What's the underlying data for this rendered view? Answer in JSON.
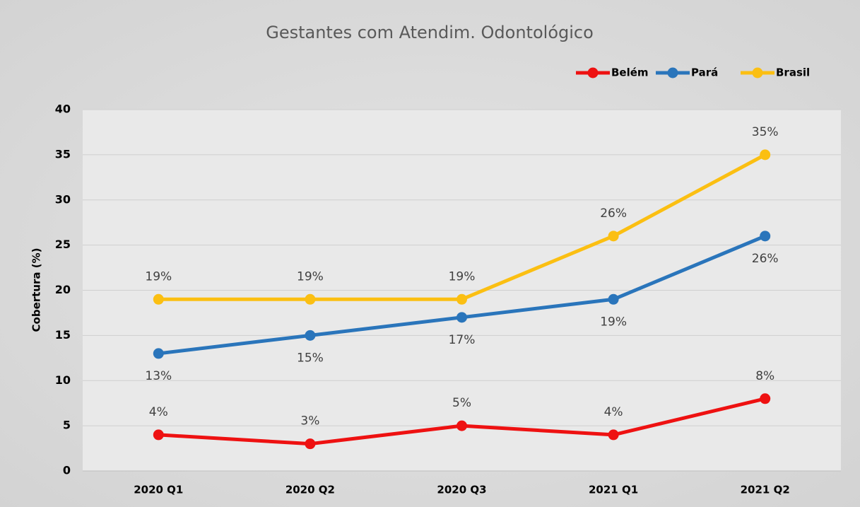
{
  "chart_data": {
    "type": "line",
    "title": "Gestantes com Atendim. Odontológico",
    "y_label": "Cobertura (%)",
    "categories": [
      "2020 Q1",
      "2020 Q2",
      "2020 Q3",
      "2021 Q1",
      "2021 Q2"
    ],
    "series": [
      {
        "name": "Belém",
        "color": "#ee1111",
        "values": [
          4,
          3,
          5,
          4,
          8
        ],
        "value_labels": [
          "4%",
          "3%",
          "5%",
          "4%",
          "8%"
        ]
      },
      {
        "name": "Pará",
        "color": "#2a75bb",
        "values": [
          13,
          15,
          17,
          19,
          26
        ],
        "value_labels": [
          "13%",
          "15%",
          "17%",
          "19%",
          "26%"
        ]
      },
      {
        "name": "Brasil",
        "color": "#fbbf12",
        "values": [
          19,
          19,
          19,
          26,
          35
        ],
        "value_labels": [
          "19%",
          "19%",
          "19%",
          "26%",
          "35%"
        ]
      }
    ],
    "ylim": [
      0,
      40
    ],
    "yticks": [
      0,
      5,
      10,
      15,
      20,
      25,
      30,
      35,
      40
    ],
    "grid": true,
    "legend": "top-right"
  }
}
